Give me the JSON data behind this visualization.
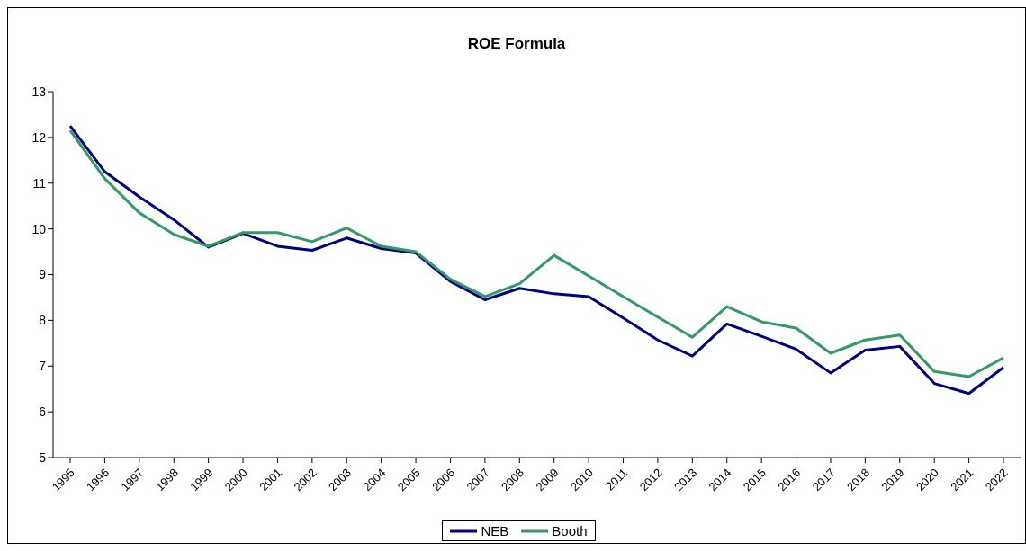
{
  "chart_data": {
    "type": "line",
    "title": "ROE Formula",
    "categories": [
      "1995",
      "1996",
      "1997",
      "1998",
      "1999",
      "2000",
      "2001",
      "2002",
      "2003",
      "2004",
      "2005",
      "2006",
      "2007",
      "2008",
      "2009",
      "2010",
      "2011",
      "2012",
      "2013",
      "2014",
      "2015",
      "2016",
      "2017",
      "2018",
      "2019",
      "2020",
      "2021",
      "2022"
    ],
    "series": [
      {
        "name": "NEB",
        "color": "#000080",
        "values": [
          12.25,
          11.25,
          10.7,
          10.2,
          9.6,
          9.9,
          9.62,
          9.53,
          9.8,
          9.57,
          9.47,
          8.85,
          8.45,
          8.7,
          8.58,
          8.52,
          8.05,
          7.57,
          7.22,
          7.92,
          7.65,
          7.37,
          6.85,
          7.35,
          7.43,
          6.62,
          6.4,
          6.97
        ]
      },
      {
        "name": "Booth",
        "color": "#339966",
        "values": [
          12.15,
          11.1,
          10.35,
          9.88,
          9.62,
          9.92,
          9.92,
          9.72,
          10.02,
          9.62,
          9.5,
          8.9,
          8.52,
          8.8,
          9.42,
          8.97,
          8.52,
          8.07,
          7.63,
          8.3,
          7.97,
          7.83,
          7.28,
          7.57,
          7.68,
          6.88,
          6.77,
          7.18
        ]
      }
    ],
    "ylim": [
      5,
      13
    ],
    "yticks": [
      5,
      6,
      7,
      8,
      9,
      10,
      11,
      12,
      13
    ],
    "grid": false,
    "legend": "bottom",
    "marker": "none",
    "line_style": "solid"
  }
}
